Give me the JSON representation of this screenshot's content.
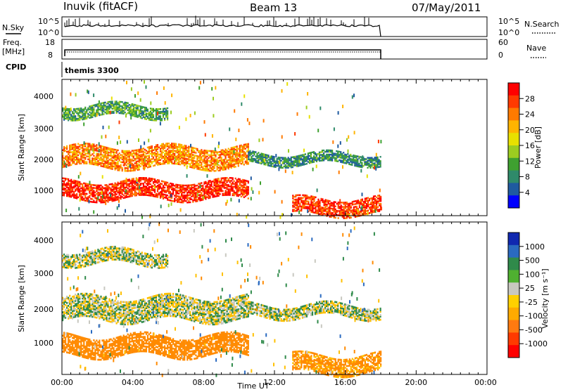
{
  "header": {
    "station": "Inuvik (fitACF)",
    "beam": "Beam 13",
    "date": "07/May/2011"
  },
  "noise_panel": {
    "left_label": "N.Sky",
    "right_label": "N.Search",
    "left_ticks": [
      "10^5",
      "10^0"
    ],
    "right_ticks": [
      "10^5",
      "10^0"
    ]
  },
  "freq_panel": {
    "left_label_top": "Freq.",
    "left_label_bottom": "[MHz]",
    "right_label": "Nave",
    "left_ticks": [
      "18",
      "8"
    ],
    "right_ticks": [
      "60",
      "0"
    ]
  },
  "cpid_panel": {
    "label": "CPID",
    "program": "themis 3300"
  },
  "power_panel": {
    "ylabel": "Slant Range [km]",
    "yticks": [
      "4000",
      "3000",
      "2000",
      "1000"
    ],
    "colorbar_label": "Power [dB]",
    "colorbar_ticks": [
      "28",
      "24",
      "20",
      "16",
      "12",
      "8",
      "4"
    ],
    "colorbar_colors": [
      "#ff0000",
      "#ff3a00",
      "#ff7a00",
      "#ffb400",
      "#e8e000",
      "#9ccc20",
      "#3fa030",
      "#2f8a6a",
      "#1f5aa0",
      "#0000ff"
    ]
  },
  "velocity_panel": {
    "ylabel": "Slant Range [km]",
    "yticks": [
      "4000",
      "3000",
      "2000",
      "1000"
    ],
    "colorbar_label": "Velocity [m s⁻¹]",
    "colorbar_ticks": [
      "1000",
      "500",
      "100",
      "25",
      "-25",
      "-100",
      "-500",
      "-1000"
    ],
    "colorbar_colors": [
      "#1028b0",
      "#2a6ac0",
      "#2f8a4a",
      "#4fb030",
      "#c8c8c0",
      "#ffd000",
      "#ffaa00",
      "#ff7a10",
      "#ff3a00",
      "#ff0000"
    ]
  },
  "xaxis": {
    "label": "Time UT",
    "ticks": [
      "00:00",
      "04:00",
      "08:00",
      "12:00",
      "16:00",
      "20:00",
      "00:00"
    ]
  },
  "chart_data": {
    "type": "heatmap",
    "x_range_hours": [
      0,
      24
    ],
    "data_end_hour": 18,
    "y_range_km": [
      180,
      4500
    ],
    "power_dB_range": [
      0,
      30
    ],
    "velocity_range_ms": [
      -1000,
      1000
    ],
    "scatter_bands": [
      {
        "range_km_start": 1700,
        "range_km_end": 2350,
        "hours": [
          0,
          10.5
        ],
        "power_dB": 22,
        "velocity_ms": 0
      },
      {
        "range_km_start": 1800,
        "range_km_end": 2150,
        "hours": [
          10.5,
          18
        ],
        "power_dB": 8,
        "velocity_ms": 0
      },
      {
        "range_km_start": 700,
        "range_km_end": 1250,
        "hours": [
          0,
          10.5
        ],
        "power_dB": 27,
        "velocity_ms": -200
      },
      {
        "range_km_start": 200,
        "range_km_end": 700,
        "hours": [
          13,
          18
        ],
        "power_dB": 26,
        "velocity_ms": -150
      },
      {
        "range_km_start": 3300,
        "range_km_end": 3700,
        "hours": [
          0,
          6
        ],
        "power_dB": 10,
        "velocity_ms": 0
      }
    ]
  }
}
